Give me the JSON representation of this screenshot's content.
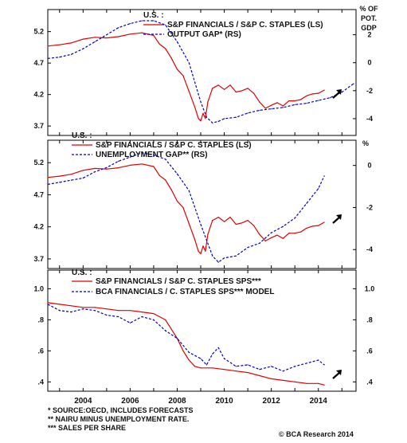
{
  "chart_data": [
    {
      "type": "line",
      "region_label": "U.S. :",
      "right_axis_unit": "% OF POT. GDP",
      "left_ticks": [
        3.7,
        4.2,
        4.7,
        5.2
      ],
      "right_ticks": [
        -4,
        -2,
        0,
        2
      ],
      "left_ylim": [
        3.55,
        5.55
      ],
      "right_ylim": [
        -5.2,
        3.8
      ],
      "series": [
        {
          "name": "S&P FINANCIALS / S&P C. STAPLES (LS)",
          "color": "#e00000",
          "style": "solid",
          "axis": "left",
          "points": [
            [
              2002.5,
              4.97
            ],
            [
              2003.0,
              4.99
            ],
            [
              2003.5,
              5.02
            ],
            [
              2004.0,
              5.08
            ],
            [
              2004.5,
              5.11
            ],
            [
              2005.0,
              5.1
            ],
            [
              2005.5,
              5.12
            ],
            [
              2006.0,
              5.16
            ],
            [
              2006.5,
              5.18
            ],
            [
              2007.0,
              5.14
            ],
            [
              2007.25,
              5.0
            ],
            [
              2007.5,
              4.93
            ],
            [
              2007.75,
              4.78
            ],
            [
              2008.0,
              4.6
            ],
            [
              2008.25,
              4.5
            ],
            [
              2008.5,
              4.25
            ],
            [
              2008.75,
              4.0
            ],
            [
              2008.9,
              3.82
            ],
            [
              2009.0,
              3.78
            ],
            [
              2009.1,
              3.9
            ],
            [
              2009.2,
              3.82
            ],
            [
              2009.3,
              4.08
            ],
            [
              2009.5,
              4.3
            ],
            [
              2009.75,
              4.35
            ],
            [
              2010.0,
              4.28
            ],
            [
              2010.25,
              4.35
            ],
            [
              2010.5,
              4.24
            ],
            [
              2010.75,
              4.26
            ],
            [
              2011.0,
              4.3
            ],
            [
              2011.25,
              4.22
            ],
            [
              2011.5,
              4.08
            ],
            [
              2011.75,
              3.98
            ],
            [
              2012.0,
              4.03
            ],
            [
              2012.25,
              4.07
            ],
            [
              2012.5,
              4.02
            ],
            [
              2012.75,
              4.1
            ],
            [
              2013.0,
              4.1
            ],
            [
              2013.25,
              4.12
            ],
            [
              2013.5,
              4.18
            ],
            [
              2013.75,
              4.21
            ],
            [
              2014.0,
              4.22
            ],
            [
              2014.25,
              4.27
            ]
          ]
        },
        {
          "name": "OUTPUT GAP* (RS)",
          "color": "#0000cc",
          "style": "dashed",
          "axis": "right",
          "points": [
            [
              2002.5,
              0.3
            ],
            [
              2003.0,
              0.4
            ],
            [
              2003.5,
              0.6
            ],
            [
              2004.0,
              1.0
            ],
            [
              2004.5,
              1.5
            ],
            [
              2005.0,
              2.0
            ],
            [
              2005.5,
              2.5
            ],
            [
              2006.0,
              2.8
            ],
            [
              2006.5,
              3.0
            ],
            [
              2007.0,
              3.0
            ],
            [
              2007.5,
              2.7
            ],
            [
              2008.0,
              1.5
            ],
            [
              2008.5,
              0.0
            ],
            [
              2009.0,
              -2.8
            ],
            [
              2009.25,
              -3.9
            ],
            [
              2009.5,
              -4.3
            ],
            [
              2009.75,
              -4.2
            ],
            [
              2010.0,
              -4.0
            ],
            [
              2010.5,
              -3.9
            ],
            [
              2011.0,
              -3.6
            ],
            [
              2011.5,
              -3.4
            ],
            [
              2012.0,
              -3.3
            ],
            [
              2012.5,
              -3.2
            ],
            [
              2013.0,
              -3.0
            ],
            [
              2013.5,
              -2.9
            ],
            [
              2014.0,
              -2.7
            ],
            [
              2014.5,
              -2.5
            ],
            [
              2015.0,
              -2.1
            ],
            [
              2015.5,
              -1.5
            ]
          ]
        }
      ],
      "arrow": true
    },
    {
      "type": "line",
      "region_label": "U.S. :",
      "right_axis_unit": "%",
      "left_ticks": [
        3.7,
        4.2,
        4.7,
        5.2
      ],
      "right_ticks": [
        -4,
        -2,
        0
      ],
      "left_ylim": [
        3.55,
        5.55
      ],
      "right_ylim": [
        -4.9,
        1.2
      ],
      "series": [
        {
          "name": "S&P FINANCIALS / S&P C. STAPLES (LS)",
          "color": "#e00000",
          "style": "solid",
          "axis": "left",
          "points": [
            [
              2002.5,
              4.97
            ],
            [
              2003.0,
              4.99
            ],
            [
              2003.5,
              5.02
            ],
            [
              2004.0,
              5.08
            ],
            [
              2004.5,
              5.11
            ],
            [
              2005.0,
              5.1
            ],
            [
              2005.5,
              5.12
            ],
            [
              2006.0,
              5.16
            ],
            [
              2006.5,
              5.18
            ],
            [
              2007.0,
              5.14
            ],
            [
              2007.25,
              5.0
            ],
            [
              2007.5,
              4.93
            ],
            [
              2007.75,
              4.78
            ],
            [
              2008.0,
              4.6
            ],
            [
              2008.25,
              4.5
            ],
            [
              2008.5,
              4.25
            ],
            [
              2008.75,
              4.0
            ],
            [
              2008.9,
              3.82
            ],
            [
              2009.0,
              3.78
            ],
            [
              2009.1,
              3.9
            ],
            [
              2009.2,
              3.82
            ],
            [
              2009.3,
              4.08
            ],
            [
              2009.5,
              4.3
            ],
            [
              2009.75,
              4.35
            ],
            [
              2010.0,
              4.28
            ],
            [
              2010.25,
              4.35
            ],
            [
              2010.5,
              4.24
            ],
            [
              2010.75,
              4.26
            ],
            [
              2011.0,
              4.3
            ],
            [
              2011.25,
              4.22
            ],
            [
              2011.5,
              4.08
            ],
            [
              2011.75,
              3.98
            ],
            [
              2012.0,
              4.03
            ],
            [
              2012.25,
              4.07
            ],
            [
              2012.5,
              4.02
            ],
            [
              2012.75,
              4.1
            ],
            [
              2013.0,
              4.1
            ],
            [
              2013.25,
              4.12
            ],
            [
              2013.5,
              4.18
            ],
            [
              2013.75,
              4.21
            ],
            [
              2014.0,
              4.22
            ],
            [
              2014.25,
              4.27
            ]
          ]
        },
        {
          "name": "UNEMPLOYMENT GAP** (RS)",
          "color": "#0000cc",
          "style": "dashed",
          "axis": "right",
          "points": [
            [
              2002.5,
              -0.9
            ],
            [
              2003.0,
              -0.8
            ],
            [
              2003.5,
              -0.7
            ],
            [
              2004.0,
              -0.6
            ],
            [
              2004.5,
              -0.3
            ],
            [
              2005.0,
              -0.1
            ],
            [
              2005.5,
              0.2
            ],
            [
              2006.0,
              0.4
            ],
            [
              2006.5,
              0.6
            ],
            [
              2007.0,
              0.5
            ],
            [
              2007.5,
              0.3
            ],
            [
              2008.0,
              -0.4
            ],
            [
              2008.5,
              -1.2
            ],
            [
              2009.0,
              -2.8
            ],
            [
              2009.5,
              -4.3
            ],
            [
              2009.75,
              -4.6
            ],
            [
              2010.0,
              -4.4
            ],
            [
              2010.5,
              -4.3
            ],
            [
              2011.0,
              -3.9
            ],
            [
              2011.5,
              -3.7
            ],
            [
              2012.0,
              -3.2
            ],
            [
              2012.5,
              -2.9
            ],
            [
              2013.0,
              -2.5
            ],
            [
              2013.5,
              -1.8
            ],
            [
              2014.0,
              -1.1
            ],
            [
              2014.25,
              -0.5
            ]
          ]
        }
      ],
      "arrow": true
    },
    {
      "type": "line",
      "region_label": "U.S. :",
      "left_ticks": [
        0.4,
        0.6,
        0.8,
        1.0
      ],
      "left_tick_labels": [
        ".4",
        ".6",
        ".8",
        "1.0"
      ],
      "right_ticks": [
        0.4,
        0.6,
        0.8,
        1.0
      ],
      "right_tick_labels": [
        ".4",
        ".6",
        ".8",
        "1.0"
      ],
      "left_ylim": [
        0.34,
        1.12
      ],
      "right_ylim": [
        0.34,
        1.12
      ],
      "series": [
        {
          "name": "S&P FINANCIALS / S&P C. STAPLES SPS***",
          "color": "#e00000",
          "style": "solid",
          "axis": "left",
          "points": [
            [
              2002.5,
              0.91
            ],
            [
              2003.0,
              0.9
            ],
            [
              2003.5,
              0.89
            ],
            [
              2004.0,
              0.88
            ],
            [
              2004.5,
              0.88
            ],
            [
              2005.0,
              0.87
            ],
            [
              2005.5,
              0.86
            ],
            [
              2006.0,
              0.86
            ],
            [
              2006.5,
              0.85
            ],
            [
              2007.0,
              0.84
            ],
            [
              2007.5,
              0.8
            ],
            [
              2008.0,
              0.68
            ],
            [
              2008.25,
              0.6
            ],
            [
              2008.5,
              0.54
            ],
            [
              2008.75,
              0.5
            ],
            [
              2009.0,
              0.49
            ],
            [
              2009.5,
              0.49
            ],
            [
              2010.0,
              0.48
            ],
            [
              2010.5,
              0.47
            ],
            [
              2011.0,
              0.46
            ],
            [
              2011.5,
              0.44
            ],
            [
              2012.0,
              0.42
            ],
            [
              2012.5,
              0.41
            ],
            [
              2013.0,
              0.4
            ],
            [
              2013.5,
              0.39
            ],
            [
              2014.0,
              0.39
            ],
            [
              2014.25,
              0.38
            ]
          ]
        },
        {
          "name": "BCA FINANCIALS / C. STAPLES SPS*** MODEL",
          "color": "#0000cc",
          "style": "dashed",
          "axis": "left",
          "points": [
            [
              2002.5,
              0.9
            ],
            [
              2003.0,
              0.86
            ],
            [
              2003.5,
              0.85
            ],
            [
              2004.0,
              0.87
            ],
            [
              2004.5,
              0.86
            ],
            [
              2005.0,
              0.83
            ],
            [
              2005.5,
              0.82
            ],
            [
              2006.0,
              0.78
            ],
            [
              2006.5,
              0.82
            ],
            [
              2007.0,
              0.8
            ],
            [
              2007.5,
              0.73
            ],
            [
              2008.0,
              0.68
            ],
            [
              2008.5,
              0.59
            ],
            [
              2009.0,
              0.55
            ],
            [
              2009.25,
              0.51
            ],
            [
              2009.5,
              0.58
            ],
            [
              2009.75,
              0.62
            ],
            [
              2010.0,
              0.55
            ],
            [
              2010.5,
              0.5
            ],
            [
              2011.0,
              0.51
            ],
            [
              2011.5,
              0.48
            ],
            [
              2012.0,
              0.5
            ],
            [
              2012.5,
              0.47
            ],
            [
              2013.0,
              0.5
            ],
            [
              2013.5,
              0.52
            ],
            [
              2014.0,
              0.54
            ],
            [
              2014.25,
              0.51
            ]
          ]
        }
      ],
      "arrow": true
    }
  ],
  "x_axis": {
    "xlim": [
      2002.5,
      2015.6
    ],
    "tick_labels": [
      "2004",
      "2006",
      "2008",
      "2010",
      "2012",
      "2014"
    ]
  },
  "footnotes": [
    "*   SOURCE:OECD, INCLUDES FORECASTS",
    "**  NAIRU MINUS UNEMPLOYMENT RATE.",
    "*** SALES PER SHARE"
  ],
  "credit": "© BCA Research 2014"
}
